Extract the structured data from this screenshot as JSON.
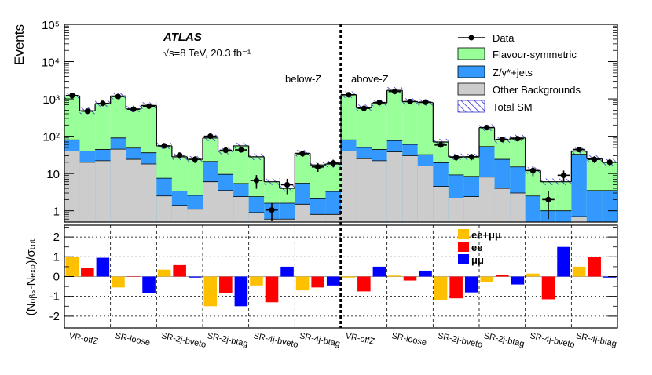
{
  "chart_data": {
    "type": "histogram",
    "experiment": "ATLAS",
    "energy_text": "√s=8 TeV, 20.3 fb⁻¹",
    "region_labels": {
      "below": "below-Z",
      "above": "above-Z"
    },
    "upper_ylabel": "Events",
    "upper_yticks": [
      {
        "value": 1,
        "label": "1"
      },
      {
        "value": 10,
        "label": "10"
      },
      {
        "value": 100,
        "label": "10²"
      },
      {
        "value": 1000,
        "label": "10³"
      },
      {
        "value": 10000,
        "label": "10⁴"
      },
      {
        "value": 100000,
        "label": "10⁵"
      }
    ],
    "upper_ylim": [
      0.5,
      100000
    ],
    "lower_ylabel": "(Nₒᵦₛ-Nₑₓₚ)/σₜₒₜ",
    "lower_ylim": [
      -2.6,
      2.6
    ],
    "lower_yticks": [
      -2,
      -1,
      0,
      1,
      2
    ],
    "categories": [
      "VR-offZ",
      "SR-loose",
      "SR-2j-bveto",
      "SR-2j-btag",
      "SR-4j-bveto",
      "SR-4j-btag",
      "VR-offZ",
      "SR-loose",
      "SR-2j-bveto",
      "SR-2j-btag",
      "SR-4j-bveto",
      "SR-4j-btag"
    ],
    "bins_per_category": 3,
    "bin_order": [
      "ee+μμ",
      "ee",
      "μμ"
    ],
    "legend": {
      "data": "Data",
      "flavour_symmetric": "Flavour-symmetric",
      "zjets": "Z/γ*+jets",
      "other": "Other Backgrounds",
      "total": "Total SM"
    },
    "ratio_legend": [
      "ee+μμ",
      "ee",
      "μμ"
    ],
    "colors": {
      "flavour_symmetric": "#99ff99",
      "zjets": "#3399ff",
      "other": "#cccccc",
      "hatch": "#3333cc",
      "comb": "#ffc000",
      "ee": "#ff0000",
      "mm": "#0000ff"
    },
    "series": {
      "total": [
        1200,
        480,
        750,
        1200,
        540,
        670,
        55,
        28,
        24,
        90,
        40,
        55,
        28,
        6,
        4,
        35,
        17,
        18,
        1300,
        580,
        780,
        1700,
        850,
        800,
        70,
        28,
        28,
        170,
        80,
        90,
        12,
        6,
        6,
        40,
        25,
        20
      ],
      "other": [
        40,
        20,
        22,
        45,
        24,
        18,
        2.5,
        1.4,
        1.1,
        6,
        3.5,
        2.4,
        0.9,
        0.6,
        0.6,
        1.5,
        0.8,
        0.8,
        40,
        25,
        22,
        38,
        30,
        16,
        4.5,
        2.2,
        2.4,
        8,
        4,
        3,
        0.5,
        0.5,
        0.5,
        0.7,
        0.5,
        0.5
      ],
      "zjets": [
        40,
        20,
        22,
        45,
        24,
        18,
        5,
        2,
        1.5,
        15,
        6,
        3,
        1.5,
        1,
        1,
        4,
        1.3,
        2.5,
        40,
        25,
        22,
        38,
        30,
        16,
        15,
        7,
        6,
        45,
        20,
        12,
        2,
        0.5,
        0.5,
        32,
        3,
        3
      ],
      "data": [
        1230,
        470,
        760,
        1160,
        530,
        640,
        55,
        31,
        24,
        100,
        42,
        43,
        6.5,
        1.05,
        5,
        34,
        15,
        19,
        1290,
        560,
        800,
        1580,
        850,
        820,
        58,
        27,
        28,
        170,
        82,
        86,
        12,
        2,
        9,
        44,
        24,
        20
      ],
      "data_err": [
        35,
        22,
        28,
        34,
        23,
        25,
        7.4,
        5.6,
        4.9,
        10,
        6.5,
        6.6,
        2.6,
        0.55,
        2.2,
        5.8,
        3.9,
        4.4,
        36,
        24,
        28,
        40,
        29,
        29,
        7.6,
        5.2,
        5.3,
        13,
        9,
        9.3,
        3.5,
        1.4,
        3,
        6.6,
        4.9,
        4.5
      ],
      "ratio": [
        1.0,
        0.45,
        0.95,
        -0.55,
        0.02,
        -0.85,
        0.35,
        0.58,
        -0.05,
        -1.5,
        -0.85,
        -1.5,
        -0.45,
        -1.3,
        0.5,
        -0.7,
        -0.55,
        -0.45,
        -0.05,
        -0.75,
        0.5,
        0.05,
        -0.2,
        0.3,
        -1.2,
        -1.1,
        -0.8,
        -0.3,
        0.1,
        -0.4,
        0.15,
        -1.15,
        1.5,
        0.5,
        1.0,
        -0.05
      ]
    }
  }
}
